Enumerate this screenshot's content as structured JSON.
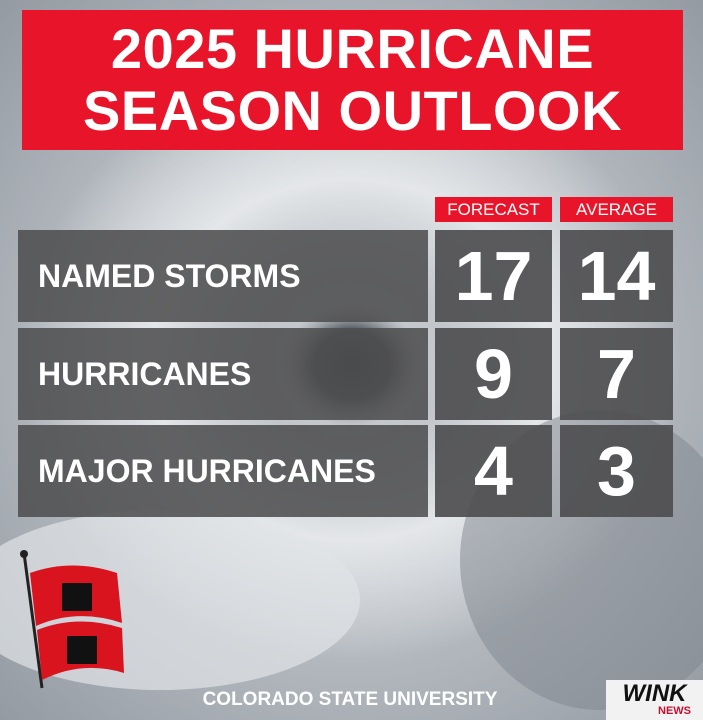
{
  "header": {
    "title": [
      "2025 HURRICANE",
      "SEASON OUTLOOK"
    ]
  },
  "table": {
    "columns": [
      "FORECAST",
      "AVERAGE"
    ],
    "rows": [
      [
        "NAMED STORMS",
        17,
        14
      ],
      [
        "HURRICANES",
        9,
        7
      ],
      [
        "MAJOR HURRICANES",
        4,
        3
      ]
    ]
  },
  "footer": {
    "source": "COLORADO STATE UNIVERSITY",
    "logo": [
      "WINK",
      "NEWS"
    ]
  }
}
